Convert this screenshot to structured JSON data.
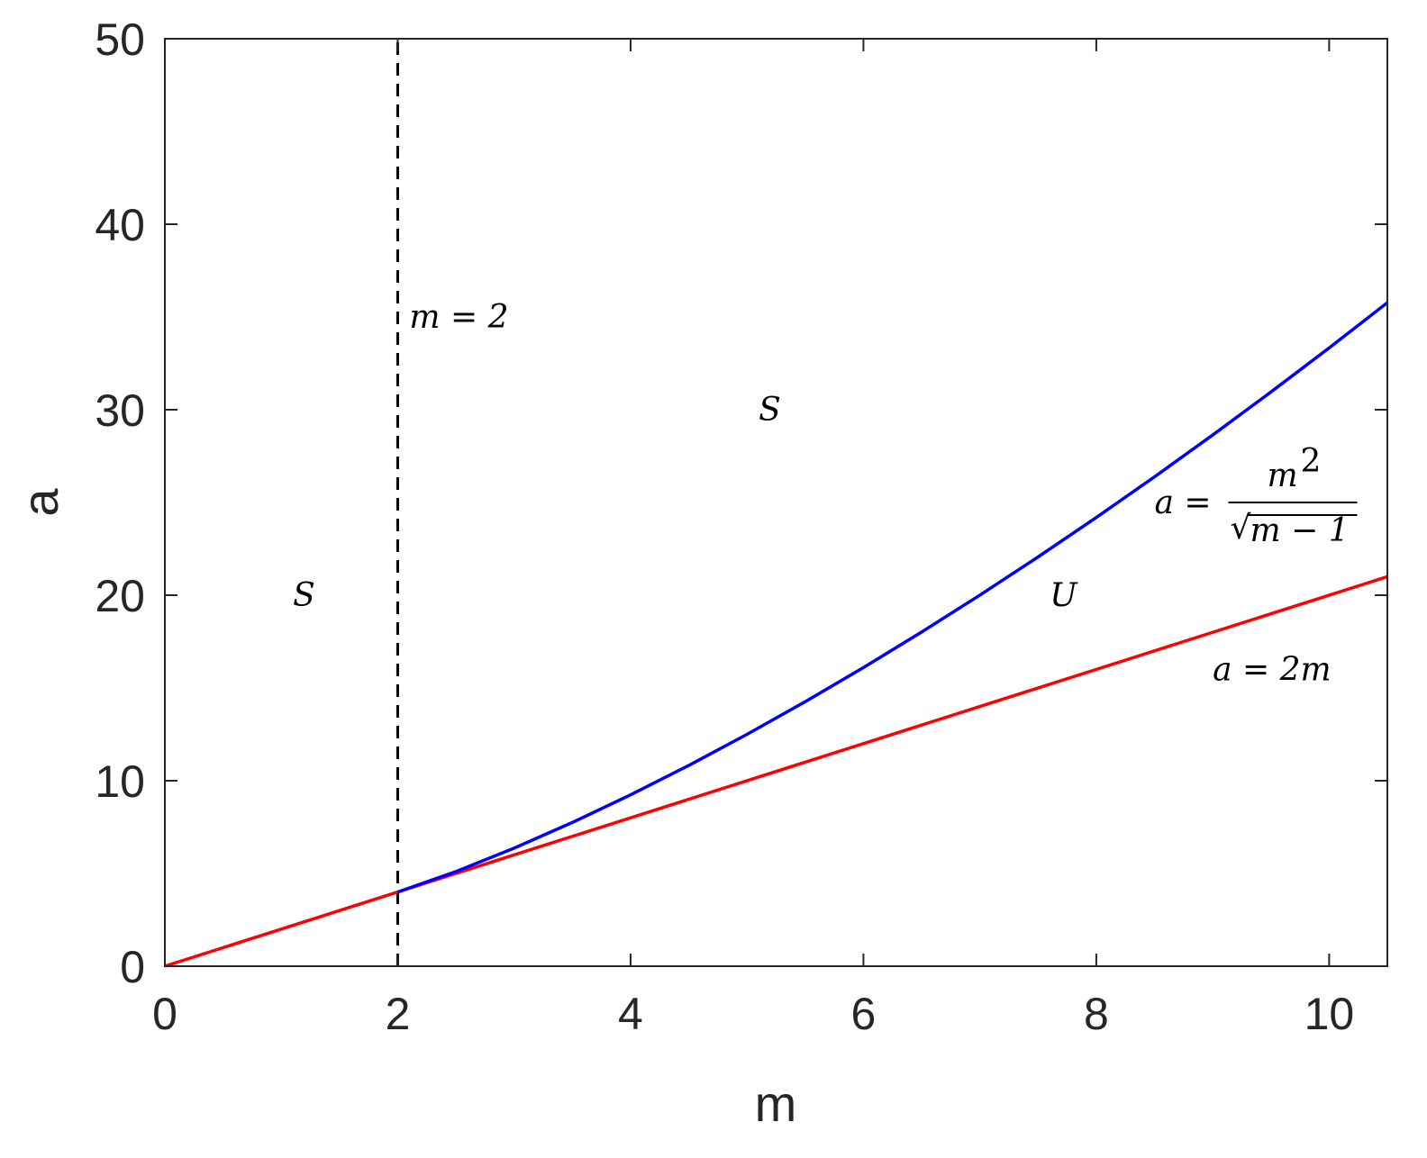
{
  "chart_data": {
    "type": "line",
    "title": "",
    "xlabel": "m",
    "ylabel": "a",
    "xlim": [
      0,
      10.5
    ],
    "ylim": [
      0,
      50
    ],
    "xticks": [
      0,
      2,
      4,
      6,
      8,
      10
    ],
    "yticks": [
      0,
      10,
      20,
      30,
      40,
      50
    ],
    "grid": false,
    "series": [
      {
        "color": "#ff0000",
        "x": [
          0,
          10.5
        ],
        "y": [
          0,
          21
        ]
      },
      {
        "color": "#0000ff",
        "x": [
          2,
          2.5,
          3,
          3.5,
          4,
          4.5,
          5,
          5.5,
          6,
          6.5,
          7,
          7.5,
          8,
          8.5,
          9,
          9.5,
          10,
          10.5
        ],
        "y": [
          4,
          5.103,
          6.364,
          7.748,
          9.238,
          10.824,
          12.5,
          14.26,
          16.1,
          18.015,
          20.004,
          22.063,
          24.19,
          26.382,
          28.638,
          30.955,
          33.333,
          35.77
        ]
      },
      {
        "color": "#000000",
        "style": "dashed",
        "x": [
          2,
          2
        ],
        "y": [
          0,
          50
        ]
      }
    ],
    "annotations": {
      "m_eq_2": {
        "text": "m = 2",
        "x": 2.1,
        "y": 35
      },
      "s_upper": {
        "text": "S",
        "x": 5.1,
        "y": 30
      },
      "s_left": {
        "text": "S",
        "x": 1.1,
        "y": 20
      },
      "u_region": {
        "text": "U",
        "x": 7.6,
        "y": 20
      },
      "blue_formula": {
        "lhs": "a =",
        "num": "m",
        "num_exp": "2",
        "den_sqrt": "√",
        "den": "m − 1",
        "x": 8.5,
        "y": 25
      },
      "red_formula": {
        "text": "a = 2m",
        "x": 9.0,
        "y": 16
      }
    }
  }
}
